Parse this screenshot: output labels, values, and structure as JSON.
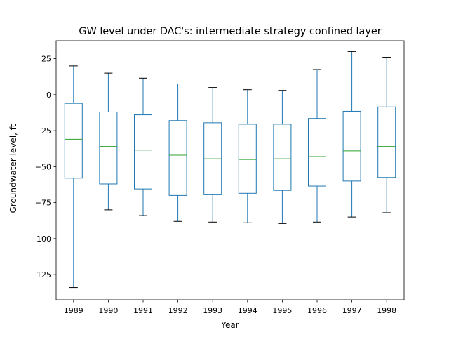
{
  "chart_data": {
    "type": "box",
    "title": "GW level under DAC's: intermediate strategy confined layer",
    "xlabel": "Year",
    "ylabel": "Groundwater level, ft",
    "ylim": [
      -142.5,
      37.5
    ],
    "yticks": [
      25,
      0,
      -25,
      -50,
      -75,
      -100,
      -125
    ],
    "ytick_labels": [
      "25",
      "0",
      "−25",
      "−50",
      "−75",
      "−100",
      "−125"
    ],
    "grid": false,
    "categories": [
      "1989",
      "1990",
      "1991",
      "1992",
      "1993",
      "1994",
      "1995",
      "1996",
      "1997",
      "1998"
    ],
    "boxes": [
      {
        "whisker_high": 20,
        "q3": -6,
        "median": -31,
        "q1": -58,
        "whisker_low": -134
      },
      {
        "whisker_high": 15,
        "q3": -12,
        "median": -36,
        "q1": -62,
        "whisker_low": -80
      },
      {
        "whisker_high": 11.5,
        "q3": -14,
        "median": -38.5,
        "q1": -65.5,
        "whisker_low": -84
      },
      {
        "whisker_high": 7.5,
        "q3": -18,
        "median": -42,
        "q1": -70,
        "whisker_low": -88
      },
      {
        "whisker_high": 5,
        "q3": -19.5,
        "median": -44.5,
        "q1": -69.5,
        "whisker_low": -88.5
      },
      {
        "whisker_high": 3.5,
        "q3": -20.5,
        "median": -45,
        "q1": -68.5,
        "whisker_low": -89
      },
      {
        "whisker_high": 3,
        "q3": -20.5,
        "median": -44.5,
        "q1": -66.5,
        "whisker_low": -89.5
      },
      {
        "whisker_high": 17.5,
        "q3": -16.5,
        "median": -43,
        "q1": -63.5,
        "whisker_low": -88.5
      },
      {
        "whisker_high": 30,
        "q3": -11.5,
        "median": -39,
        "q1": -60,
        "whisker_low": -85
      },
      {
        "whisker_high": 26,
        "q3": -8.5,
        "median": -36,
        "q1": -57.5,
        "whisker_low": -82
      }
    ],
    "colors": {
      "box": "#1f77b4",
      "median": "#2ca02c",
      "whisker_cap": "#000000",
      "axes": "#000000"
    }
  }
}
